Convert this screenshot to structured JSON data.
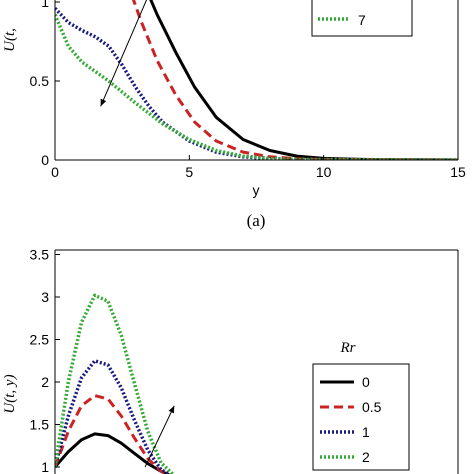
{
  "chart_data": [
    {
      "type": "line",
      "panel_label": "(a)",
      "xlabel": "y",
      "ylabel": "U(t,",
      "xlim": [
        0,
        15
      ],
      "ylim": [
        0,
        1
      ],
      "x_ticks": [
        "0",
        "5",
        "10",
        "15"
      ],
      "y_ticks": [
        "0",
        "0.5",
        "1"
      ],
      "legend": {
        "position": "top-right",
        "visible_entries": [
          "7"
        ]
      },
      "series": [
        {
          "name": "",
          "color": "#000000",
          "style": "solid",
          "x": [
            3.3,
            3.8,
            4.5,
            5.2,
            6.0,
            7.0,
            8.0,
            9.0,
            10.0,
            12.0,
            15.0
          ],
          "y": [
            1.12,
            0.92,
            0.68,
            0.46,
            0.27,
            0.13,
            0.06,
            0.025,
            0.01,
            0.002,
            0.0
          ]
        },
        {
          "name": "",
          "color": "#cc2222",
          "style": "dashed",
          "x": [
            2.7,
            3.2,
            3.8,
            4.5,
            5.2,
            6.0,
            7.0,
            8.0,
            9.0,
            10.0,
            15.0
          ],
          "y": [
            1.12,
            0.88,
            0.63,
            0.41,
            0.24,
            0.12,
            0.05,
            0.02,
            0.008,
            0.003,
            0.0
          ]
        },
        {
          "name": "",
          "color": "#1a1a80",
          "style": "dotted",
          "x": [
            0,
            0.5,
            1.0,
            1.5,
            2.0,
            2.5,
            3.0,
            3.5,
            4.0,
            5.0,
            6.0,
            7.0,
            8.0,
            9.0,
            15.0
          ],
          "y": [
            0.96,
            0.87,
            0.82,
            0.78,
            0.72,
            0.6,
            0.46,
            0.34,
            0.24,
            0.12,
            0.05,
            0.02,
            0.008,
            0.003,
            0.0
          ]
        },
        {
          "name": "7",
          "color": "#33aa33",
          "style": "dotted",
          "x": [
            0,
            0.5,
            1.0,
            1.5,
            2.0,
            2.5,
            3.0,
            4.0,
            5.0,
            6.0,
            7.0,
            8.0,
            9.0,
            15.0
          ],
          "y": [
            0.92,
            0.72,
            0.62,
            0.56,
            0.5,
            0.43,
            0.36,
            0.23,
            0.13,
            0.06,
            0.025,
            0.01,
            0.004,
            0.0
          ]
        }
      ],
      "arrow": {
        "from": [
          3.5,
          1.05
        ],
        "to": [
          1.7,
          0.34
        ]
      }
    },
    {
      "type": "line",
      "xlabel": "",
      "ylabel": "U(t, y)",
      "ylim": [
        1.0,
        3.5
      ],
      "y_ticks": [
        "1",
        "1.5",
        "2",
        "2.5",
        "3",
        "3.5"
      ],
      "legend": {
        "title": "Rr",
        "position": "right",
        "entries": [
          "0",
          "0.5",
          "1",
          "2"
        ]
      },
      "series": [
        {
          "name": "0",
          "color": "#000000",
          "style": "solid",
          "x": [
            0.0,
            0.5,
            1.0,
            1.5,
            2.0,
            2.5,
            3.0,
            3.5,
            4.0,
            4.5
          ],
          "y": [
            1.0,
            1.18,
            1.32,
            1.39,
            1.37,
            1.28,
            1.16,
            1.04,
            0.95,
            0.88
          ]
        },
        {
          "name": "0.5",
          "color": "#cc2222",
          "style": "dashed",
          "x": [
            0.0,
            0.5,
            1.0,
            1.5,
            2.0,
            2.5,
            3.0,
            3.5,
            4.0,
            4.5
          ],
          "y": [
            1.0,
            1.42,
            1.72,
            1.84,
            1.8,
            1.6,
            1.34,
            1.1,
            0.95,
            0.88
          ]
        },
        {
          "name": "1",
          "color": "#1a1a80",
          "style": "dotted",
          "x": [
            0.0,
            0.5,
            1.0,
            1.5,
            2.0,
            2.5,
            3.0,
            3.5,
            4.0,
            4.5
          ],
          "y": [
            1.0,
            1.6,
            2.05,
            2.25,
            2.2,
            1.93,
            1.55,
            1.2,
            0.97,
            0.88
          ]
        },
        {
          "name": "2",
          "color": "#33aa33",
          "style": "dotted",
          "x": [
            0.0,
            0.5,
            1.0,
            1.5,
            2.0,
            2.5,
            3.0,
            3.5,
            4.0,
            4.5
          ],
          "y": [
            1.0,
            2.0,
            2.7,
            3.02,
            2.95,
            2.55,
            1.98,
            1.42,
            1.05,
            0.9
          ]
        }
      ],
      "arrow": {
        "from": [
          3.4,
          1.0
        ],
        "to": [
          4.5,
          1.72
        ]
      }
    }
  ]
}
